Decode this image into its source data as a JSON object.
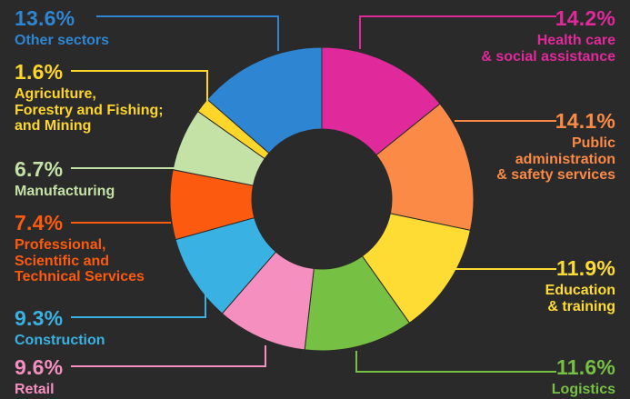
{
  "chart_data": {
    "type": "pie",
    "title": "",
    "donut": true,
    "slices": [
      {
        "key": "health",
        "pct": "14.2%",
        "value": 14.2,
        "label": "Health care\n& social assistance",
        "color": "#e0299a"
      },
      {
        "key": "public",
        "pct": "14.1%",
        "value": 14.1,
        "label": "Public\nadministration\n& safety services",
        "color": "#fa8a45"
      },
      {
        "key": "education",
        "pct": "11.9%",
        "value": 11.9,
        "label": "Education\n& training",
        "color": "#fedc33"
      },
      {
        "key": "logistics",
        "pct": "11.6%",
        "value": 11.6,
        "label": "Logistics",
        "color": "#76c043"
      },
      {
        "key": "retail",
        "pct": "9.6%",
        "value": 9.6,
        "label": "Retail",
        "color": "#f48fc0"
      },
      {
        "key": "construction",
        "pct": "9.3%",
        "value": 9.3,
        "label": "Construction",
        "color": "#39b2e3"
      },
      {
        "key": "professional",
        "pct": "7.4%",
        "value": 7.4,
        "label": "Professional,\nScientific and\nTechnical Services",
        "color": "#fb5a0f"
      },
      {
        "key": "manufacturing",
        "pct": "6.7%",
        "value": 6.7,
        "label": "Manufacturing",
        "color": "#c4e1a6"
      },
      {
        "key": "agriculture",
        "pct": "1.6%",
        "value": 1.6,
        "label": "Agriculture,\nForestry and Fishing;\nand Mining",
        "color": "#fed62a"
      },
      {
        "key": "other",
        "pct": "13.6%",
        "value": 13.6,
        "label": "Other sectors",
        "color": "#2e86d2"
      }
    ]
  }
}
